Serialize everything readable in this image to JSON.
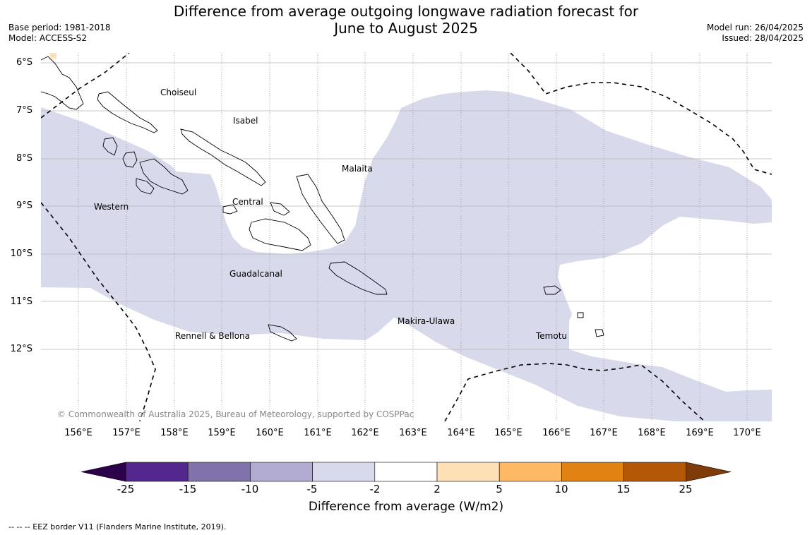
{
  "title_line1": "Difference from average outgoing longwave radiation forecast for",
  "title_line2": "June to August 2025",
  "meta_left": {
    "base_period": "Base period: 1981-2018",
    "model": "Model: ACCESS-S2"
  },
  "meta_right": {
    "model_run": "Model run: 26/04/2025",
    "issued": "Issued: 28/04/2025"
  },
  "map": {
    "lat_labels": [
      "6°S",
      "7°S",
      "8°S",
      "9°S",
      "10°S",
      "11°S",
      "12°S"
    ],
    "lon_labels": [
      "156°E",
      "157°E",
      "158°E",
      "159°E",
      "160°E",
      "161°E",
      "162°E",
      "163°E",
      "164°E",
      "165°E",
      "166°E",
      "167°E",
      "168°E",
      "169°E",
      "170°E"
    ],
    "regions": {
      "choiseul": "Choiseul",
      "isabel": "Isabel",
      "malaita": "Malaita",
      "western": "Western",
      "central": "Central",
      "guadalcanal": "Guadalcanal",
      "makira": "Makira-Ulawa",
      "rennell": "Rennell & Bellona",
      "temotu": "Temotu"
    },
    "copyright": "© Commonwealth of Australia 2025, Bureau of Meteorology, supported by COSPPac"
  },
  "colorbar": {
    "ticks": [
      "-25",
      "-15",
      "-10",
      "-5",
      "-2",
      "2",
      "5",
      "10",
      "15",
      "25"
    ],
    "colors": [
      "#54278f",
      "#8073ac",
      "#b2abd2",
      "#d8daeb",
      "#ffffff",
      "#fee0b6",
      "#fdb863",
      "#e08214",
      "#b35806"
    ],
    "extend_low": "#2d004b",
    "extend_high": "#7f3b08",
    "label": "Difference from average (W/m2)"
  },
  "footnote": "-- -- -- EEZ border V11 (Flanders Marine Institute, 2019)."
}
